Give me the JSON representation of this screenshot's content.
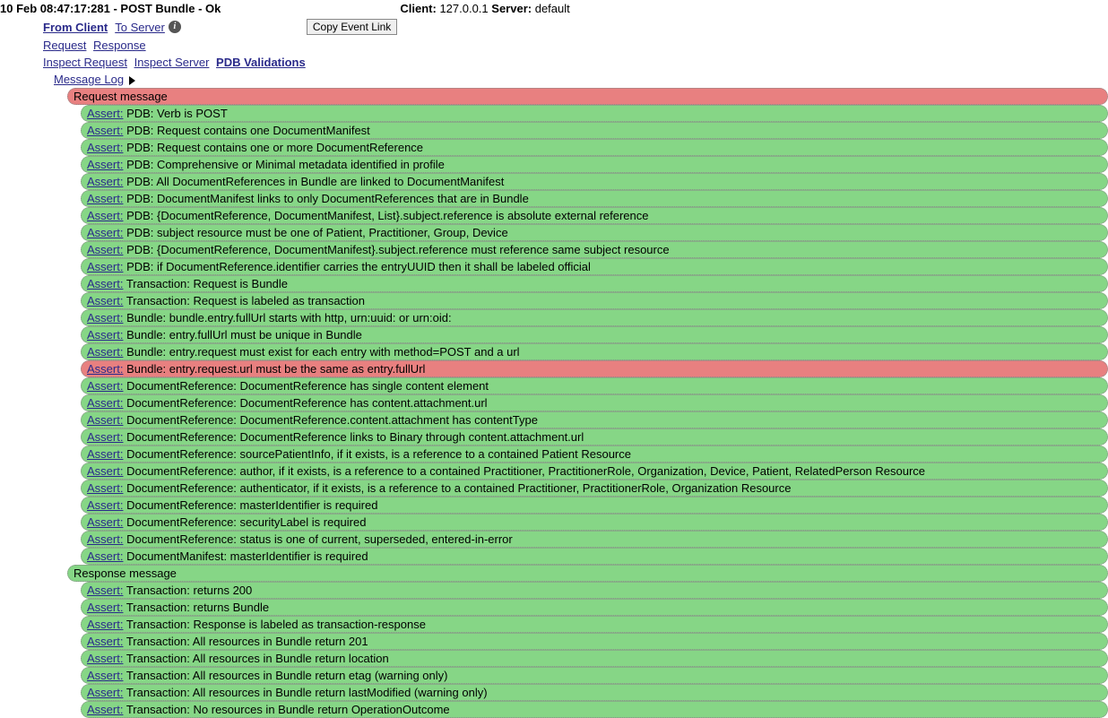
{
  "colors": {
    "red_bg": "#e88080",
    "green_bg": "#86d686",
    "link": "#2a2a8a",
    "bg": "#ffffff",
    "border_dotted": "#888888"
  },
  "header": {
    "title": "10 Feb 08:47:17:281 - POST Bundle - Ok",
    "client_label": "Client:",
    "client_value": "127.0.0.1",
    "server_label": "Server:",
    "server_value": "default",
    "from_client": "From Client",
    "to_server": "To Server",
    "copy_button": "Copy Event Link",
    "request": "Request",
    "response": "Response",
    "inspect_request": "Inspect Request",
    "inspect_server": "Inspect Server",
    "pdb_validations": "PDB Validations",
    "message_log": "Message Log"
  },
  "sections": [
    {
      "label": "Request message",
      "status": "fail",
      "asserts": [
        {
          "status": "pass",
          "text": "PDB: Verb is POST"
        },
        {
          "status": "pass",
          "text": "PDB: Request contains one DocumentManifest"
        },
        {
          "status": "pass",
          "text": "PDB: Request contains one or more DocumentReference"
        },
        {
          "status": "pass",
          "text": "PDB: Comprehensive or Minimal metadata identified in profile"
        },
        {
          "status": "pass",
          "text": "PDB: All DocumentReferences in Bundle are linked to DocumentManifest"
        },
        {
          "status": "pass",
          "text": "PDB: DocumentManifest links to only DocumentReferences that are in Bundle"
        },
        {
          "status": "pass",
          "text": "PDB: {DocumentReference, DocumentManifest, List}.subject.reference is absolute external reference"
        },
        {
          "status": "pass",
          "text": "PDB: subject resource must be one of Patient, Practitioner, Group, Device"
        },
        {
          "status": "pass",
          "text": "PDB: {DocumentReference, DocumentManifest}.subject.reference must reference same subject resource"
        },
        {
          "status": "pass",
          "text": "PDB: if DocumentReference.identifier carries the entryUUID then it shall be labeled official"
        },
        {
          "status": "pass",
          "text": "Transaction: Request is Bundle"
        },
        {
          "status": "pass",
          "text": "Transaction: Request is labeled as transaction"
        },
        {
          "status": "pass",
          "text": "Bundle: bundle.entry.fullUrl starts with http, urn:uuid: or urn:oid:"
        },
        {
          "status": "pass",
          "text": "Bundle: entry.fullUrl must be unique in Bundle"
        },
        {
          "status": "pass",
          "text": "Bundle: entry.request must exist for each entry with method=POST and a url"
        },
        {
          "status": "fail",
          "text": "Bundle: entry.request.url must be the same as entry.fullUrl"
        },
        {
          "status": "pass",
          "text": "DocumentReference: DocumentReference has single content element"
        },
        {
          "status": "pass",
          "text": "DocumentReference: DocumentReference has content.attachment.url"
        },
        {
          "status": "pass",
          "text": "DocumentReference: DocumentReference.content.attachment has contentType"
        },
        {
          "status": "pass",
          "text": "DocumentReference: DocumentReference links to Binary through content.attachment.url"
        },
        {
          "status": "pass",
          "text": "DocumentReference: sourcePatientInfo, if it exists, is a reference to a contained Patient Resource"
        },
        {
          "status": "pass",
          "text": "DocumentReference: author, if it exists, is a reference to a contained Practitioner, PractitionerRole, Organization, Device, Patient, RelatedPerson Resource"
        },
        {
          "status": "pass",
          "text": "DocumentReference: authenticator, if it exists, is a reference to a contained Practitioner, PractitionerRole, Organization Resource"
        },
        {
          "status": "pass",
          "text": "DocumentReference: masterIdentifier is required"
        },
        {
          "status": "pass",
          "text": "DocumentReference: securityLabel is required"
        },
        {
          "status": "pass",
          "text": "DocumentReference: status is one of current, superseded, entered-in-error"
        },
        {
          "status": "pass",
          "text": "DocumentManifest: masterIdentifier is required"
        }
      ]
    },
    {
      "label": "Response message",
      "status": "pass",
      "asserts": [
        {
          "status": "pass",
          "text": "Transaction: returns 200"
        },
        {
          "status": "pass",
          "text": "Transaction: returns Bundle"
        },
        {
          "status": "pass",
          "text": "Transaction: Response is labeled as transaction-response"
        },
        {
          "status": "pass",
          "text": "Transaction: All resources in Bundle return 201"
        },
        {
          "status": "pass",
          "text": "Transaction: All resources in Bundle return location"
        },
        {
          "status": "pass",
          "text": "Transaction: All resources in Bundle return etag (warning only)"
        },
        {
          "status": "pass",
          "text": "Transaction: All resources in Bundle return lastModified (warning only)"
        },
        {
          "status": "pass",
          "text": "Transaction: No resources in Bundle return OperationOutcome"
        }
      ]
    }
  ],
  "assert_label": "Assert:"
}
